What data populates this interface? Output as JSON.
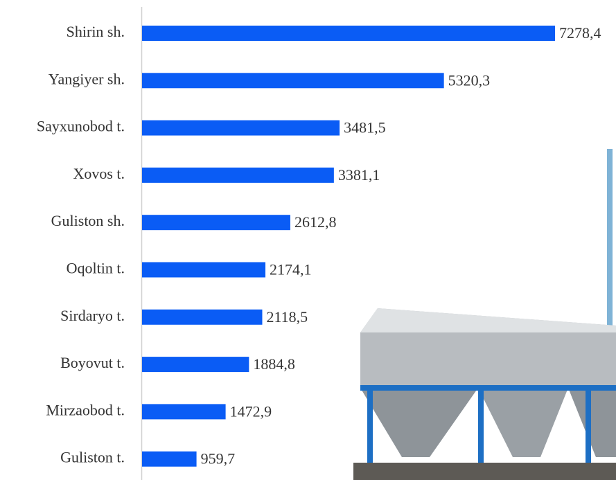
{
  "chart_data": {
    "type": "barh",
    "categories": [
      "Shirin sh.",
      "Yangiyer sh.",
      "Sayxunobod t.",
      "Xovos t.",
      "Guliston sh.",
      "Oqoltin t.",
      "Sirdaryo t.",
      "Boyovut t.",
      "Mirzaobod t.",
      "Guliston t."
    ],
    "values": [
      7278.4,
      5320.3,
      3481.5,
      3381.1,
      2612.8,
      2174.1,
      2118.5,
      1884.8,
      1472.9,
      959.7
    ],
    "value_labels": [
      "7278,4",
      "5320,3",
      "3481,5",
      "3381,1",
      "2612,8",
      "2174,1",
      "2118,5",
      "1884,8",
      "1472,9",
      "959,7"
    ],
    "color": "#0a5cf5"
  }
}
